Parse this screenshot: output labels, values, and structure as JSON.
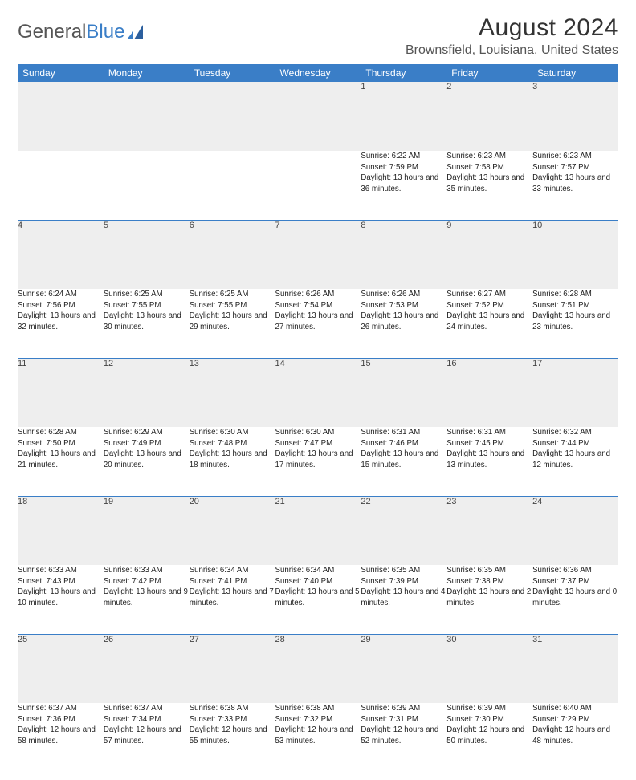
{
  "brand": {
    "part1": "General",
    "part2": "Blue"
  },
  "header": {
    "month_title": "August 2024",
    "location": "Brownsfield, Louisiana, United States"
  },
  "colors": {
    "header_bg": "#3a7ec7",
    "header_text": "#ffffff",
    "daynum_bg": "#eeeeee",
    "week_divider": "#3a7ec7",
    "body_text": "#222222",
    "page_bg": "#ffffff",
    "logo_gray": "#555555",
    "logo_blue": "#3a7ec7"
  },
  "day_headers": [
    "Sunday",
    "Monday",
    "Tuesday",
    "Wednesday",
    "Thursday",
    "Friday",
    "Saturday"
  ],
  "weeks": [
    [
      null,
      null,
      null,
      null,
      {
        "num": "1",
        "sunrise": "Sunrise: 6:22 AM",
        "sunset": "Sunset: 7:59 PM",
        "daylight": "Daylight: 13 hours and 36 minutes."
      },
      {
        "num": "2",
        "sunrise": "Sunrise: 6:23 AM",
        "sunset": "Sunset: 7:58 PM",
        "daylight": "Daylight: 13 hours and 35 minutes."
      },
      {
        "num": "3",
        "sunrise": "Sunrise: 6:23 AM",
        "sunset": "Sunset: 7:57 PM",
        "daylight": "Daylight: 13 hours and 33 minutes."
      }
    ],
    [
      {
        "num": "4",
        "sunrise": "Sunrise: 6:24 AM",
        "sunset": "Sunset: 7:56 PM",
        "daylight": "Daylight: 13 hours and 32 minutes."
      },
      {
        "num": "5",
        "sunrise": "Sunrise: 6:25 AM",
        "sunset": "Sunset: 7:55 PM",
        "daylight": "Daylight: 13 hours and 30 minutes."
      },
      {
        "num": "6",
        "sunrise": "Sunrise: 6:25 AM",
        "sunset": "Sunset: 7:55 PM",
        "daylight": "Daylight: 13 hours and 29 minutes."
      },
      {
        "num": "7",
        "sunrise": "Sunrise: 6:26 AM",
        "sunset": "Sunset: 7:54 PM",
        "daylight": "Daylight: 13 hours and 27 minutes."
      },
      {
        "num": "8",
        "sunrise": "Sunrise: 6:26 AM",
        "sunset": "Sunset: 7:53 PM",
        "daylight": "Daylight: 13 hours and 26 minutes."
      },
      {
        "num": "9",
        "sunrise": "Sunrise: 6:27 AM",
        "sunset": "Sunset: 7:52 PM",
        "daylight": "Daylight: 13 hours and 24 minutes."
      },
      {
        "num": "10",
        "sunrise": "Sunrise: 6:28 AM",
        "sunset": "Sunset: 7:51 PM",
        "daylight": "Daylight: 13 hours and 23 minutes."
      }
    ],
    [
      {
        "num": "11",
        "sunrise": "Sunrise: 6:28 AM",
        "sunset": "Sunset: 7:50 PM",
        "daylight": "Daylight: 13 hours and 21 minutes."
      },
      {
        "num": "12",
        "sunrise": "Sunrise: 6:29 AM",
        "sunset": "Sunset: 7:49 PM",
        "daylight": "Daylight: 13 hours and 20 minutes."
      },
      {
        "num": "13",
        "sunrise": "Sunrise: 6:30 AM",
        "sunset": "Sunset: 7:48 PM",
        "daylight": "Daylight: 13 hours and 18 minutes."
      },
      {
        "num": "14",
        "sunrise": "Sunrise: 6:30 AM",
        "sunset": "Sunset: 7:47 PM",
        "daylight": "Daylight: 13 hours and 17 minutes."
      },
      {
        "num": "15",
        "sunrise": "Sunrise: 6:31 AM",
        "sunset": "Sunset: 7:46 PM",
        "daylight": "Daylight: 13 hours and 15 minutes."
      },
      {
        "num": "16",
        "sunrise": "Sunrise: 6:31 AM",
        "sunset": "Sunset: 7:45 PM",
        "daylight": "Daylight: 13 hours and 13 minutes."
      },
      {
        "num": "17",
        "sunrise": "Sunrise: 6:32 AM",
        "sunset": "Sunset: 7:44 PM",
        "daylight": "Daylight: 13 hours and 12 minutes."
      }
    ],
    [
      {
        "num": "18",
        "sunrise": "Sunrise: 6:33 AM",
        "sunset": "Sunset: 7:43 PM",
        "daylight": "Daylight: 13 hours and 10 minutes."
      },
      {
        "num": "19",
        "sunrise": "Sunrise: 6:33 AM",
        "sunset": "Sunset: 7:42 PM",
        "daylight": "Daylight: 13 hours and 9 minutes."
      },
      {
        "num": "20",
        "sunrise": "Sunrise: 6:34 AM",
        "sunset": "Sunset: 7:41 PM",
        "daylight": "Daylight: 13 hours and 7 minutes."
      },
      {
        "num": "21",
        "sunrise": "Sunrise: 6:34 AM",
        "sunset": "Sunset: 7:40 PM",
        "daylight": "Daylight: 13 hours and 5 minutes."
      },
      {
        "num": "22",
        "sunrise": "Sunrise: 6:35 AM",
        "sunset": "Sunset: 7:39 PM",
        "daylight": "Daylight: 13 hours and 4 minutes."
      },
      {
        "num": "23",
        "sunrise": "Sunrise: 6:35 AM",
        "sunset": "Sunset: 7:38 PM",
        "daylight": "Daylight: 13 hours and 2 minutes."
      },
      {
        "num": "24",
        "sunrise": "Sunrise: 6:36 AM",
        "sunset": "Sunset: 7:37 PM",
        "daylight": "Daylight: 13 hours and 0 minutes."
      }
    ],
    [
      {
        "num": "25",
        "sunrise": "Sunrise: 6:37 AM",
        "sunset": "Sunset: 7:36 PM",
        "daylight": "Daylight: 12 hours and 58 minutes."
      },
      {
        "num": "26",
        "sunrise": "Sunrise: 6:37 AM",
        "sunset": "Sunset: 7:34 PM",
        "daylight": "Daylight: 12 hours and 57 minutes."
      },
      {
        "num": "27",
        "sunrise": "Sunrise: 6:38 AM",
        "sunset": "Sunset: 7:33 PM",
        "daylight": "Daylight: 12 hours and 55 minutes."
      },
      {
        "num": "28",
        "sunrise": "Sunrise: 6:38 AM",
        "sunset": "Sunset: 7:32 PM",
        "daylight": "Daylight: 12 hours and 53 minutes."
      },
      {
        "num": "29",
        "sunrise": "Sunrise: 6:39 AM",
        "sunset": "Sunset: 7:31 PM",
        "daylight": "Daylight: 12 hours and 52 minutes."
      },
      {
        "num": "30",
        "sunrise": "Sunrise: 6:39 AM",
        "sunset": "Sunset: 7:30 PM",
        "daylight": "Daylight: 12 hours and 50 minutes."
      },
      {
        "num": "31",
        "sunrise": "Sunrise: 6:40 AM",
        "sunset": "Sunset: 7:29 PM",
        "daylight": "Daylight: 12 hours and 48 minutes."
      }
    ]
  ]
}
